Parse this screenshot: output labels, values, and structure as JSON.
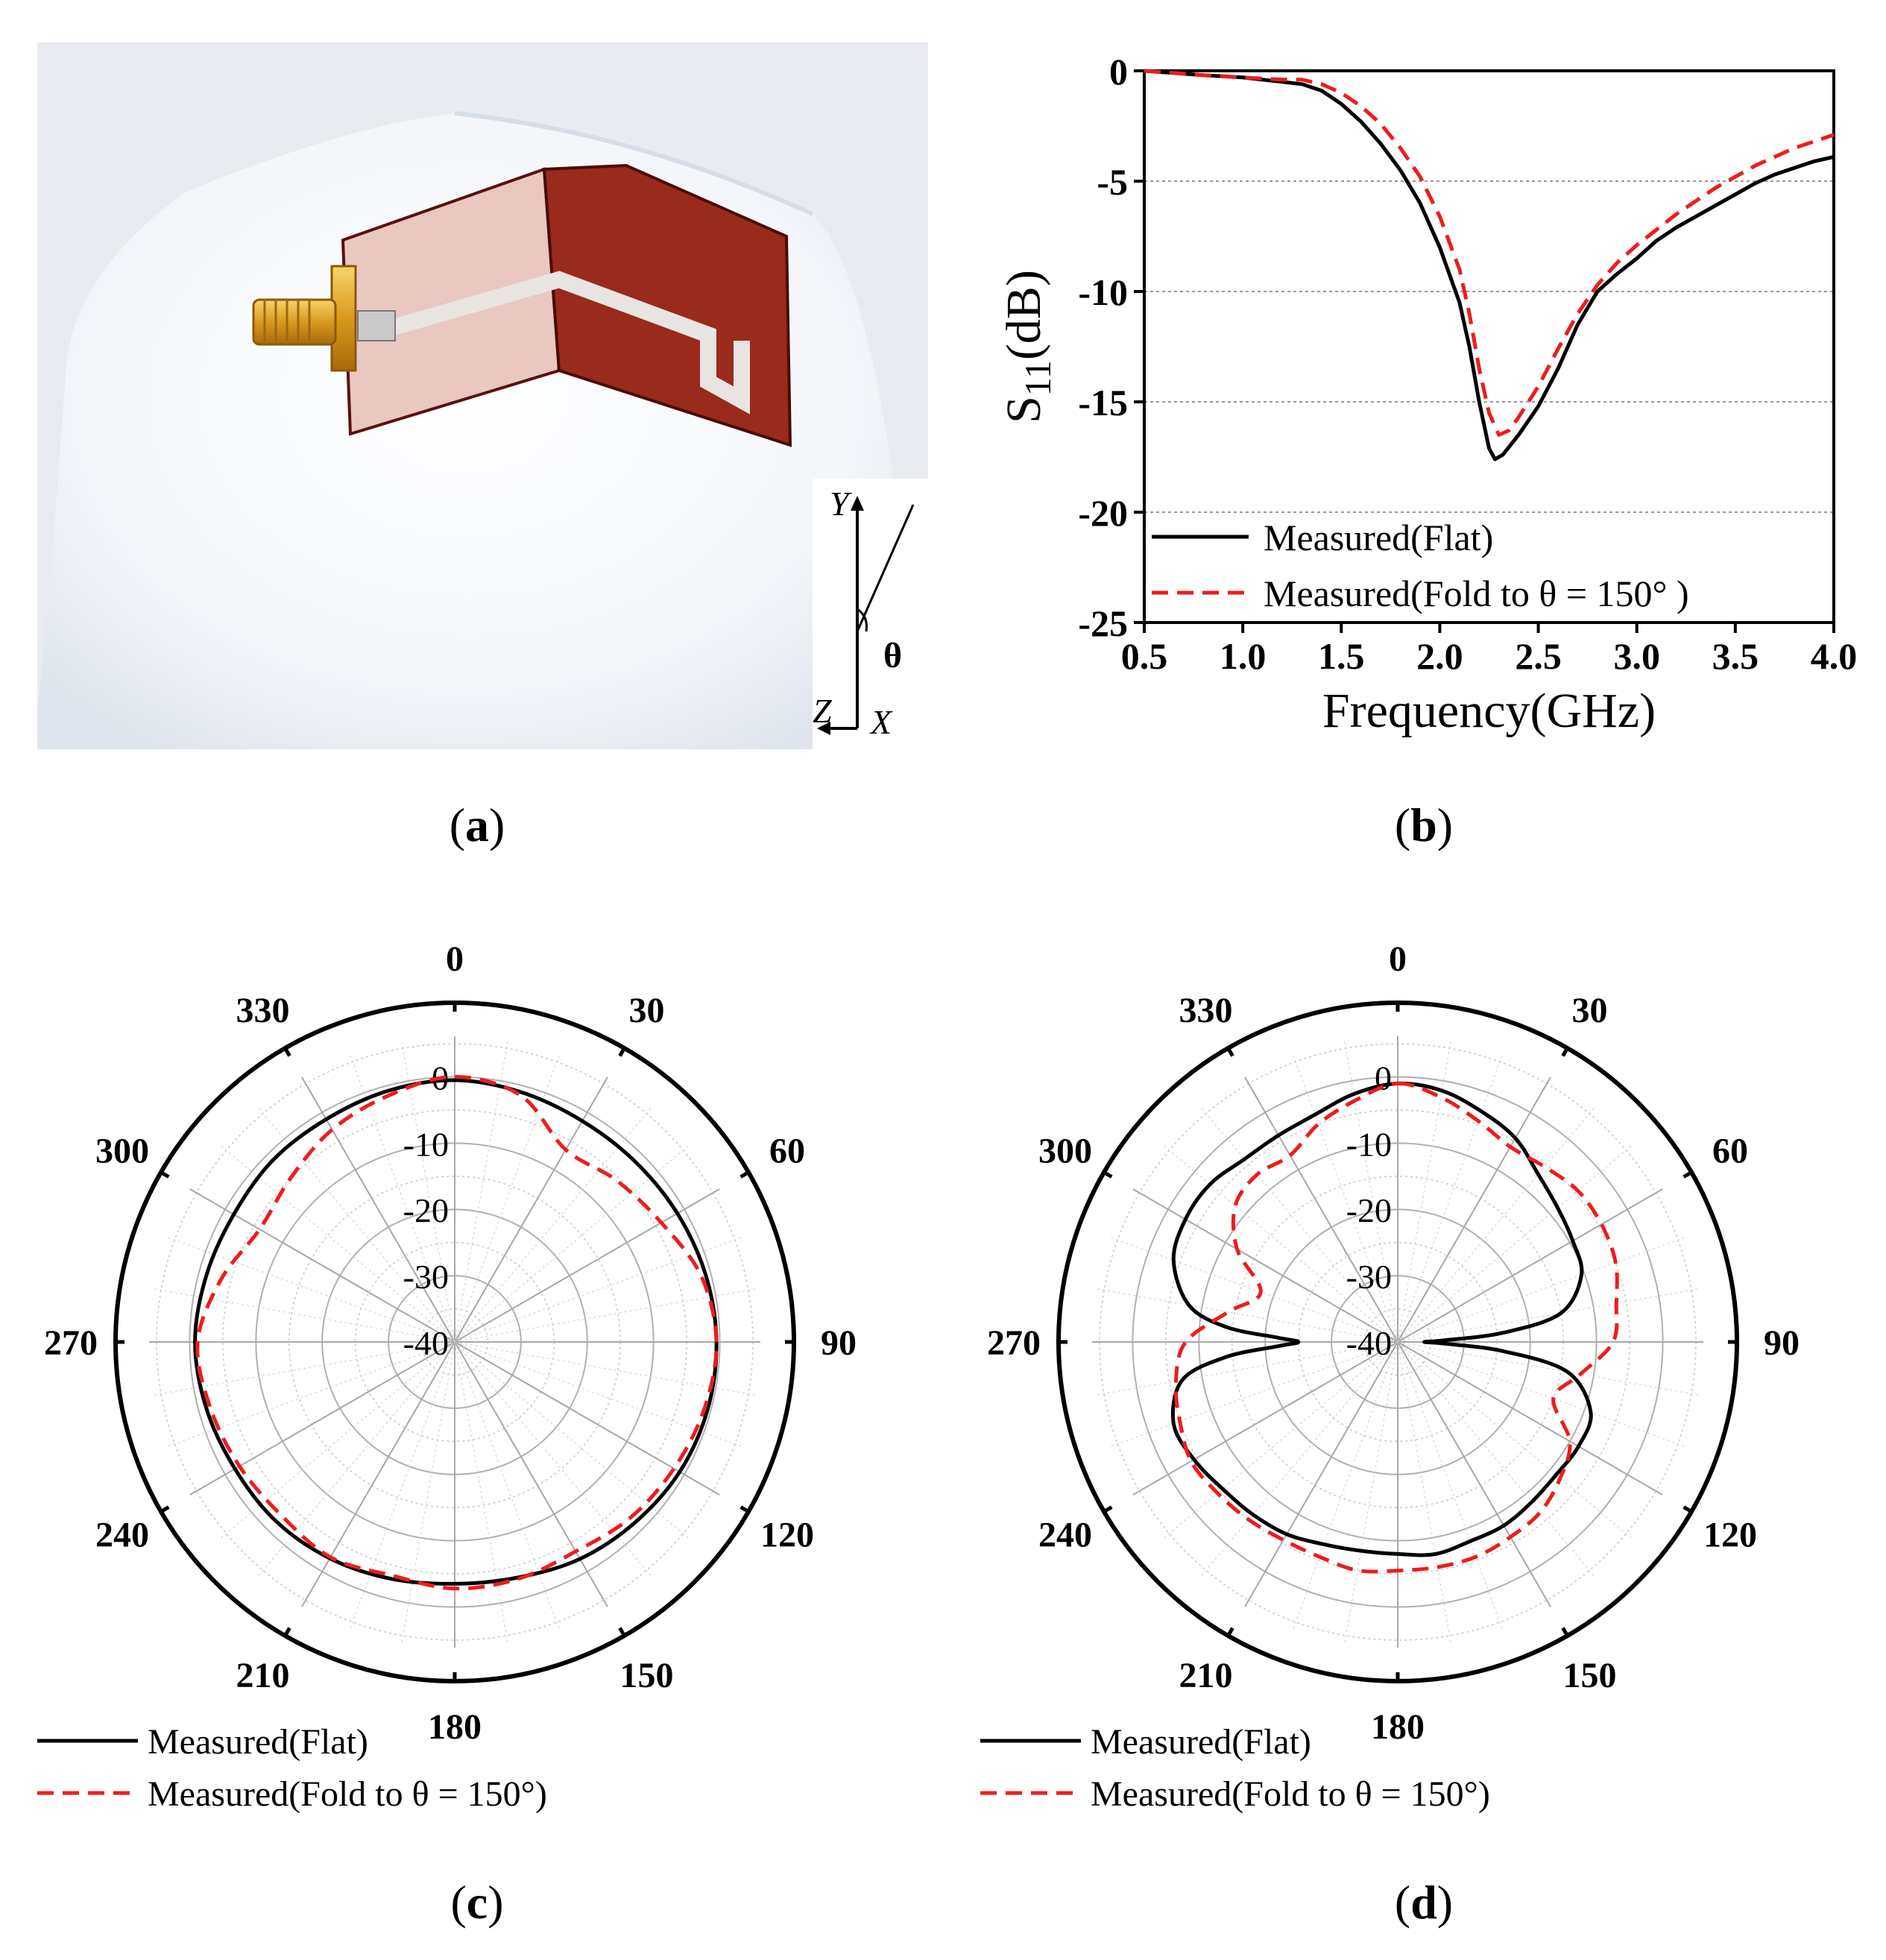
{
  "captions": {
    "a": "a",
    "b": "b",
    "c": "c",
    "d": "d"
  },
  "photo": {
    "axis_labels": {
      "y": "Y",
      "z": "Z",
      "x": "X",
      "angle": "θ"
    }
  },
  "chart_data": [
    {
      "type": "line",
      "panel": "b",
      "xlabel": "Frequency(GHz)",
      "ylabel_main": "S",
      "ylabel_sub": "11",
      "ylabel_rest": "(dB)",
      "xlim": [
        0.5,
        4.0
      ],
      "ylim": [
        -25,
        0
      ],
      "xticks": [
        "0.5",
        "1.0",
        "1.5",
        "2.0",
        "2.5",
        "3.0",
        "3.5",
        "4.0"
      ],
      "yticks": [
        "0",
        "-5",
        "-10",
        "-15",
        "-20",
        "-25"
      ],
      "grid": "horizontal dotted",
      "legend_position": "bottom-left",
      "series": [
        {
          "name": "Measured(Flat)",
          "color": "#000000",
          "style": "solid",
          "x": [
            0.5,
            0.8,
            1.0,
            1.2,
            1.3,
            1.4,
            1.5,
            1.6,
            1.7,
            1.8,
            1.9,
            2.0,
            2.1,
            2.15,
            2.2,
            2.25,
            2.28,
            2.32,
            2.4,
            2.5,
            2.6,
            2.7,
            2.8,
            2.9,
            3.0,
            3.1,
            3.2,
            3.3,
            3.4,
            3.5,
            3.6,
            3.7,
            3.8,
            3.9,
            4.0
          ],
          "y": [
            0,
            -0.2,
            -0.3,
            -0.5,
            -0.6,
            -0.9,
            -1.5,
            -2.3,
            -3.3,
            -4.5,
            -6.0,
            -8.0,
            -10.5,
            -12.5,
            -15.0,
            -17.1,
            -17.6,
            -17.4,
            -16.5,
            -15.2,
            -13.5,
            -11.5,
            -10.0,
            -9.2,
            -8.5,
            -7.7,
            -7.1,
            -6.6,
            -6.1,
            -5.6,
            -5.1,
            -4.7,
            -4.4,
            -4.1,
            -3.9
          ]
        },
        {
          "name": "Measured(Fold to θ = 150° )",
          "color": "#ee1c1c",
          "style": "dashed",
          "x": [
            0.5,
            0.8,
            1.0,
            1.2,
            1.3,
            1.4,
            1.5,
            1.6,
            1.7,
            1.8,
            1.9,
            2.0,
            2.1,
            2.15,
            2.2,
            2.25,
            2.3,
            2.35,
            2.4,
            2.5,
            2.6,
            2.7,
            2.8,
            2.9,
            3.0,
            3.1,
            3.2,
            3.3,
            3.4,
            3.5,
            3.6,
            3.7,
            3.8,
            3.9,
            4.0
          ],
          "y": [
            0,
            -0.2,
            -0.3,
            -0.4,
            -0.4,
            -0.6,
            -1.0,
            -1.6,
            -2.4,
            -3.5,
            -4.8,
            -6.6,
            -9.0,
            -11.0,
            -13.5,
            -15.5,
            -16.5,
            -16.3,
            -15.7,
            -14.3,
            -12.6,
            -11.0,
            -9.7,
            -8.7,
            -7.9,
            -7.2,
            -6.5,
            -5.9,
            -5.3,
            -4.8,
            -4.3,
            -3.9,
            -3.5,
            -3.2,
            -2.9
          ]
        }
      ]
    },
    {
      "type": "polar",
      "panel": "c",
      "angle_ticks": [
        "0",
        "30",
        "60",
        "90",
        "120",
        "150",
        "180",
        "210",
        "240",
        "270",
        "300",
        "330"
      ],
      "radial_ticks": [
        "0",
        "-10",
        "-20",
        "-30",
        "-40"
      ],
      "rlim": [
        -40,
        5
      ],
      "legend_position": "bottom-left",
      "series": [
        {
          "name": "Measured(Flat)",
          "color": "#000000",
          "style": "solid",
          "theta": [
            0,
            15,
            30,
            45,
            60,
            75,
            90,
            105,
            120,
            135,
            150,
            165,
            180,
            195,
            210,
            225,
            240,
            255,
            270,
            285,
            300,
            315,
            330,
            345
          ],
          "r": [
            -0.5,
            -1.0,
            -1.5,
            -1.5,
            -1.2,
            -0.8,
            -0.5,
            -0.5,
            -0.8,
            -1.5,
            -2.2,
            -3.2,
            -3.5,
            -3.0,
            -2.3,
            -1.8,
            -1.7,
            -1.2,
            -0.8,
            -1.2,
            -1.5,
            -1.2,
            -1.2,
            -0.8
          ]
        },
        {
          "name": "Measured(Fold to θ = 150°)",
          "color": "#ee1c1c",
          "style": "dashed",
          "theta": [
            0,
            15,
            30,
            45,
            60,
            75,
            90,
            105,
            120,
            135,
            150,
            165,
            180,
            195,
            210,
            225,
            240,
            255,
            270,
            285,
            300,
            315,
            330,
            345
          ],
          "r": [
            0,
            -1.5,
            -6.5,
            -5.5,
            -4.0,
            -1.5,
            -0.5,
            -1.0,
            -1.8,
            -2.5,
            -3.5,
            -3.0,
            -2.8,
            -3.5,
            -2.5,
            -3.0,
            -2.5,
            -1.8,
            -1.2,
            -3.5,
            -6.0,
            -5.0,
            -3.0,
            -1.5
          ]
        }
      ]
    },
    {
      "type": "polar",
      "panel": "d",
      "angle_ticks": [
        "0",
        "30",
        "60",
        "90",
        "120",
        "150",
        "180",
        "210",
        "240",
        "270",
        "300",
        "330"
      ],
      "radial_ticks": [
        "0",
        "-10",
        "-20",
        "-30",
        "-40"
      ],
      "rlim": [
        -40,
        5
      ],
      "legend_position": "bottom-left",
      "series": [
        {
          "name": "Measured(Flat)",
          "color": "#000000",
          "style": "solid",
          "theta": [
            0,
            10,
            20,
            30,
            40,
            50,
            60,
            70,
            80,
            85,
            88,
            90,
            92,
            95,
            100,
            110,
            120,
            130,
            140,
            150,
            160,
            170,
            180,
            190,
            200,
            210,
            220,
            230,
            240,
            250,
            260,
            265,
            268,
            270,
            272,
            275,
            280,
            290,
            300,
            310,
            320,
            330,
            340,
            350
          ],
          "r": [
            -1.0,
            -1.5,
            -3.0,
            -4.5,
            -7.0,
            -8.5,
            -9.5,
            -10.5,
            -15.0,
            -24.0,
            -33.0,
            -36.0,
            -33.0,
            -24.0,
            -14.0,
            -9.0,
            -8.5,
            -8.8,
            -8.5,
            -8.0,
            -8.0,
            -7.5,
            -8.0,
            -8.0,
            -7.5,
            -6.5,
            -6.0,
            -5.5,
            -4.5,
            -4.0,
            -7.0,
            -14.0,
            -22.0,
            -25.0,
            -22.0,
            -14.0,
            -8.0,
            -4.0,
            -3.0,
            -3.0,
            -4.0,
            -4.0,
            -3.5,
            -2.0
          ]
        },
        {
          "name": "Measured(Fold to θ = 150°)",
          "color": "#ee1c1c",
          "style": "dashed",
          "theta": [
            0,
            10,
            20,
            30,
            40,
            50,
            60,
            70,
            80,
            90,
            100,
            110,
            120,
            130,
            140,
            150,
            160,
            170,
            180,
            190,
            200,
            210,
            220,
            230,
            240,
            250,
            260,
            270,
            280,
            290,
            300,
            310,
            320,
            330,
            340,
            350
          ],
          "r": [
            -1.0,
            -2.5,
            -4.5,
            -6.0,
            -5.5,
            -4.5,
            -4.5,
            -5.0,
            -6.5,
            -7.5,
            -12.0,
            -15.0,
            -10.0,
            -8.0,
            -6.5,
            -6.0,
            -5.5,
            -5.5,
            -5.5,
            -5.0,
            -5.5,
            -5.5,
            -5.0,
            -4.5,
            -4.0,
            -5.0,
            -6.0,
            -8.0,
            -14.0,
            -18.0,
            -12.0,
            -8.0,
            -7.0,
            -7.5,
            -5.0,
            -3.0
          ]
        }
      ]
    }
  ]
}
